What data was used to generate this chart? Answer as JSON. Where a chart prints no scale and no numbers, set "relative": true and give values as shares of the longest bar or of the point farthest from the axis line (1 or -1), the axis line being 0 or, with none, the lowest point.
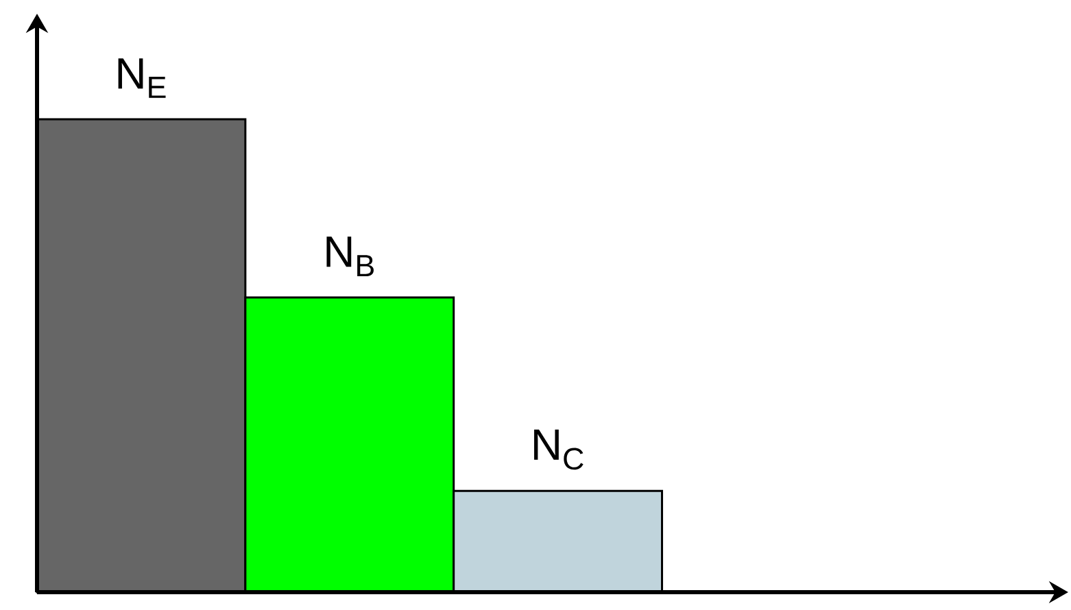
{
  "chart_data": {
    "type": "bar",
    "relative": true,
    "categories": [
      "N$_{E}$",
      "N$_{B}$",
      "N$_{C}$"
    ],
    "values": [
      1,
      0.623,
      0.214
    ],
    "colors": [
      "#666666",
      "#00ff00",
      "#c0d4dc"
    ]
  }
}
